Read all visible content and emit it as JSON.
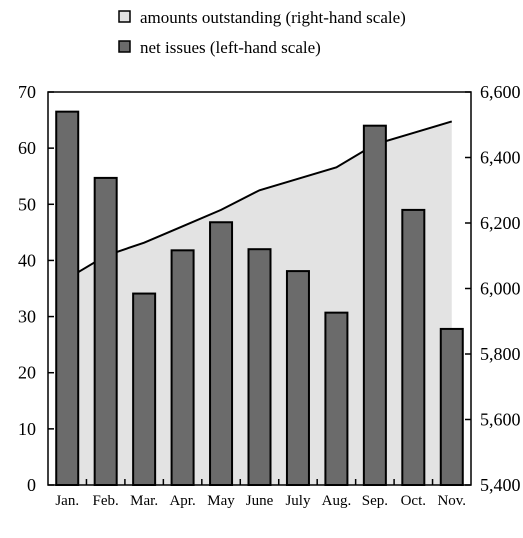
{
  "chart_data": {
    "type": "bar",
    "categories": [
      "Jan.",
      "Feb.",
      "Mar.",
      "Apr.",
      "May",
      "June",
      "July",
      "Aug.",
      "Sep.",
      "Oct.",
      "Nov."
    ],
    "series": [
      {
        "name": "net issues (left-hand scale)",
        "type": "bar",
        "axis": "left",
        "values": [
          66.5,
          54.7,
          34.1,
          41.8,
          46.8,
          42.0,
          38.1,
          30.7,
          64.0,
          49.0,
          27.8
        ]
      },
      {
        "name": "amounts outstanding (right-hand scale)",
        "type": "area",
        "axis": "right",
        "values": [
          6030,
          6100,
          6140,
          6190,
          6240,
          6300,
          6335,
          6370,
          6440,
          6475,
          6510
        ]
      }
    ],
    "left_axis": {
      "ylim": [
        0,
        70
      ],
      "ticks": [
        0,
        10,
        20,
        30,
        40,
        50,
        60,
        70
      ],
      "tick_labels": [
        "0",
        "10",
        "20",
        "30",
        "40",
        "50",
        "60",
        "70"
      ]
    },
    "right_axis": {
      "ylim": [
        5400,
        6600
      ],
      "ticks": [
        5400,
        5600,
        5800,
        6000,
        6200,
        6400,
        6600
      ],
      "tick_labels": [
        "5,400",
        "5,600",
        "5,800",
        "6,000",
        "6,200",
        "6,400",
        "6,600"
      ]
    },
    "legend_position": "top",
    "grid": false,
    "colors": {
      "bar": "#6b6b6b",
      "area": "#e3e3e3",
      "line": "#000000"
    }
  }
}
